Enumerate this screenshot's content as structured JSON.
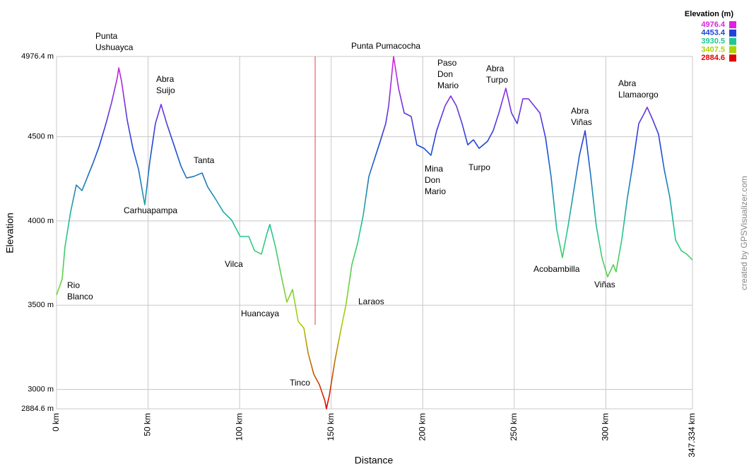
{
  "chart_data": {
    "type": "line",
    "x_label": "Distance",
    "y_label": "Elevation",
    "legend_title": "Elevation (m)",
    "color_scale": [
      {
        "value": 4976.4,
        "color": "#e020e0"
      },
      {
        "value": 4453.4,
        "color": "#1c44d8"
      },
      {
        "value": 3930.5,
        "color": "#20c890"
      },
      {
        "value": 3407.5,
        "color": "#a8d400"
      },
      {
        "value": 2884.6,
        "color": "#e00000"
      }
    ],
    "credit": "created by GPSVisualizer.com",
    "xlim": [
      0,
      347.334
    ],
    "xticks": [
      {
        "value": 0,
        "label": "0 km"
      },
      {
        "value": 50,
        "label": "50 km"
      },
      {
        "value": 100,
        "label": "100 km"
      },
      {
        "value": 150,
        "label": "150 km"
      },
      {
        "value": 200,
        "label": "200 km"
      },
      {
        "value": 250,
        "label": "250 km"
      },
      {
        "value": 300,
        "label": "300 km"
      },
      {
        "value": 347.334,
        "label": "347.334 km"
      }
    ],
    "ylim": [
      2884.6,
      4976.4
    ],
    "yticks": [
      {
        "value": 2884.6,
        "label": "2884.6 m"
      },
      {
        "value": 3000,
        "label": "3000 m"
      },
      {
        "value": 3500,
        "label": "3500 m"
      },
      {
        "value": 4000,
        "label": "4000 m"
      },
      {
        "value": 4500,
        "label": "4500 m"
      },
      {
        "value": 4976.4,
        "label": "4976.4 m"
      }
    ],
    "grid": true,
    "x": [
      0,
      3.1,
      4.6,
      7.7,
      10.8,
      13.9,
      17.0,
      20.1,
      23.2,
      27.0,
      30.1,
      33.2,
      34.0,
      35.5,
      38.6,
      41.7,
      44.8,
      48.2,
      50.9,
      54.0,
      57.1,
      60.2,
      64.1,
      67.9,
      71.0,
      74.9,
      79.5,
      82.6,
      86.4,
      91.1,
      95.7,
      100.3,
      105.0,
      108.1,
      111.9,
      115.0,
      116.5,
      119.6,
      122.7,
      125.8,
      128.9,
      132.0,
      135.1,
      137.4,
      140.5,
      143.6,
      146.6,
      147.4,
      149.0,
      152.1,
      155.1,
      158.2,
      161.3,
      164.4,
      167.5,
      170.6,
      173.7,
      176.8,
      179.8,
      181.4,
      184.1,
      186.8,
      189.9,
      193.7,
      196.8,
      200.7,
      204.5,
      207.6,
      212.2,
      215.3,
      218.4,
      221.5,
      224.6,
      227.7,
      230.8,
      235.4,
      238.5,
      241.6,
      245.4,
      248.5,
      251.6,
      254.7,
      257.8,
      260.9,
      264.0,
      267.1,
      270.1,
      273.2,
      276.3,
      279.4,
      282.5,
      285.6,
      288.7,
      291.8,
      294.8,
      297.9,
      301.0,
      304.1,
      305.6,
      308.7,
      311.8,
      314.9,
      318.0,
      321.1,
      322.6,
      325.7,
      328.8,
      331.9,
      335.0,
      338.1,
      341.2,
      344.2,
      347.3
    ],
    "values": [
      3560,
      3656,
      3845,
      4054,
      4213,
      4180,
      4264,
      4348,
      4440,
      4578,
      4704,
      4851,
      4909,
      4830,
      4599,
      4431,
      4306,
      4096,
      4348,
      4578,
      4692,
      4578,
      4452,
      4327,
      4255,
      4264,
      4285,
      4201,
      4138,
      4054,
      4004,
      3908,
      3908,
      3824,
      3803,
      3928,
      3979,
      3845,
      3677,
      3518,
      3593,
      3404,
      3363,
      3216,
      3090,
      3027,
      2931,
      2885,
      2964,
      3174,
      3342,
      3509,
      3740,
      3866,
      4033,
      4264,
      4369,
      4473,
      4578,
      4683,
      4976,
      4788,
      4641,
      4620,
      4452,
      4431,
      4390,
      4536,
      4683,
      4742,
      4683,
      4578,
      4452,
      4482,
      4431,
      4473,
      4536,
      4641,
      4788,
      4641,
      4578,
      4725,
      4725,
      4683,
      4641,
      4494,
      4264,
      3950,
      3782,
      3970,
      4180,
      4390,
      4536,
      4264,
      3970,
      3782,
      3668,
      3740,
      3698,
      3887,
      4138,
      4348,
      4578,
      4641,
      4675,
      4599,
      4515,
      4306,
      4138,
      3887,
      3824,
      3803,
      3769
    ],
    "annotations": [
      {
        "lines": [
          "Punta",
          "Ushuayca"
        ]
      },
      {
        "lines": [
          "Abra",
          "Suijo"
        ]
      },
      {
        "lines": [
          "Carhuapampa"
        ]
      },
      {
        "lines": [
          "Tanta"
        ]
      },
      {
        "lines": [
          "Rio",
          "Blanco"
        ]
      },
      {
        "lines": [
          "Vilca"
        ]
      },
      {
        "lines": [
          "Huancaya"
        ]
      },
      {
        "lines": [
          "Tinco"
        ]
      },
      {
        "lines": [
          "Laraos"
        ]
      },
      {
        "lines": [
          "Punta Pumacocha"
        ]
      },
      {
        "lines": [
          "Paso",
          "Don",
          "Mario"
        ]
      },
      {
        "lines": [
          "Mina",
          "Don",
          "Mario"
        ]
      },
      {
        "lines": [
          "Abra",
          "Turpo"
        ]
      },
      {
        "lines": [
          "Turpo"
        ]
      },
      {
        "lines": [
          "Abra",
          "Viñas"
        ]
      },
      {
        "lines": [
          "Acobambilla"
        ]
      },
      {
        "lines": [
          "Viñas"
        ]
      },
      {
        "lines": [
          "Abra",
          "Llamaorgo"
        ]
      }
    ]
  }
}
